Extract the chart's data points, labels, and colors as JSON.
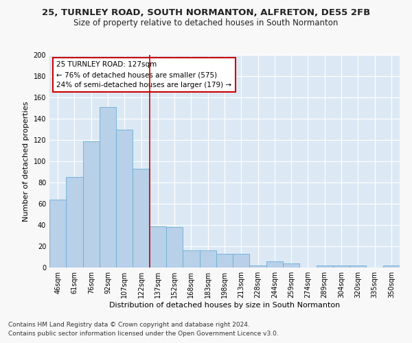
{
  "title1": "25, TURNLEY ROAD, SOUTH NORMANTON, ALFRETON, DE55 2FB",
  "title2": "Size of property relative to detached houses in South Normanton",
  "xlabel": "Distribution of detached houses by size in South Normanton",
  "ylabel": "Number of detached properties",
  "footnote1": "Contains HM Land Registry data © Crown copyright and database right 2024.",
  "footnote2": "Contains public sector information licensed under the Open Government Licence v3.0.",
  "bar_labels": [
    "46sqm",
    "61sqm",
    "76sqm",
    "92sqm",
    "107sqm",
    "122sqm",
    "137sqm",
    "152sqm",
    "168sqm",
    "183sqm",
    "198sqm",
    "213sqm",
    "228sqm",
    "244sqm",
    "259sqm",
    "274sqm",
    "289sqm",
    "304sqm",
    "320sqm",
    "335sqm",
    "350sqm"
  ],
  "bar_values": [
    64,
    85,
    119,
    151,
    130,
    93,
    39,
    38,
    16,
    16,
    13,
    13,
    2,
    6,
    4,
    0,
    2,
    2,
    2,
    0,
    2
  ],
  "bar_color": "#b8d0e8",
  "bar_edge_color": "#6aaed6",
  "bg_color": "#dce9f5",
  "grid_color": "#ffffff",
  "annotation_box_text": "25 TURNLEY ROAD: 127sqm\n← 76% of detached houses are smaller (575)\n24% of semi-detached houses are larger (179) →",
  "annotation_box_color": "#ffffff",
  "annotation_box_edge_color": "#cc0000",
  "vline_color": "#cc0000",
  "vline_x_bar_index": 5.5,
  "ylim": [
    0,
    200
  ],
  "yticks": [
    0,
    20,
    40,
    60,
    80,
    100,
    120,
    140,
    160,
    180,
    200
  ],
  "fig_width": 6.0,
  "fig_height": 5.0,
  "dpi": 100,
  "title1_fontsize": 9.5,
  "title2_fontsize": 8.5,
  "tick_fontsize": 7,
  "ylabel_fontsize": 8,
  "xlabel_fontsize": 8,
  "annotation_fontsize": 7.5,
  "footnote_fontsize": 6.5,
  "fig_bg_color": "#f8f8f8"
}
